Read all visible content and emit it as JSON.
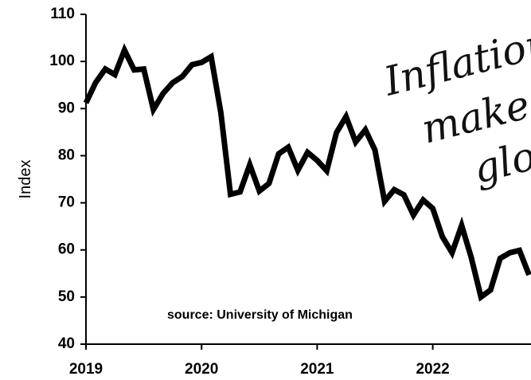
{
  "chart_data": {
    "type": "line",
    "y_label": "Index",
    "annotations": [
      "source:  University of Michigan",
      "Inflation",
      "makes",
      "glo"
    ],
    "x": [
      2019.0,
      2019.083,
      2019.167,
      2019.25,
      2019.333,
      2019.417,
      2019.5,
      2019.583,
      2019.667,
      2019.75,
      2019.833,
      2019.917,
      2020.0,
      2020.083,
      2020.167,
      2020.25,
      2020.333,
      2020.417,
      2020.5,
      2020.583,
      2020.667,
      2020.75,
      2020.833,
      2020.917,
      2021.0,
      2021.083,
      2021.167,
      2021.25,
      2021.333,
      2021.417,
      2021.5,
      2021.583,
      2021.667,
      2021.75,
      2021.833,
      2021.917,
      2022.0,
      2022.083,
      2022.167,
      2022.25,
      2022.333,
      2022.417,
      2022.5,
      2022.583,
      2022.667,
      2022.75,
      2022.833
    ],
    "series": [
      {
        "color": "#000000",
        "values": [
          91.2,
          95.5,
          98.4,
          97.2,
          102.4,
          98.2,
          98.4,
          89.8,
          93.2,
          95.5,
          96.8,
          99.3,
          99.8,
          101.0,
          89.1,
          71.8,
          72.3,
          78.1,
          72.5,
          74.1,
          80.4,
          81.8,
          76.9,
          80.7,
          79.0,
          76.8,
          84.9,
          88.3,
          82.9,
          85.5,
          81.2,
          70.3,
          72.8,
          71.7,
          67.4,
          70.6,
          68.8,
          62.8,
          59.4,
          65.2,
          58.4,
          50.0,
          51.5,
          58.2,
          59.4,
          59.9,
          54.7
        ]
      }
    ],
    "xlim": [
      2019,
      2022.85
    ],
    "xticks": [
      2019,
      2020,
      2021,
      2022
    ],
    "ylim": [
      40,
      110
    ],
    "yticks": [
      40,
      50,
      60,
      70,
      80,
      90,
      100,
      110
    ]
  }
}
